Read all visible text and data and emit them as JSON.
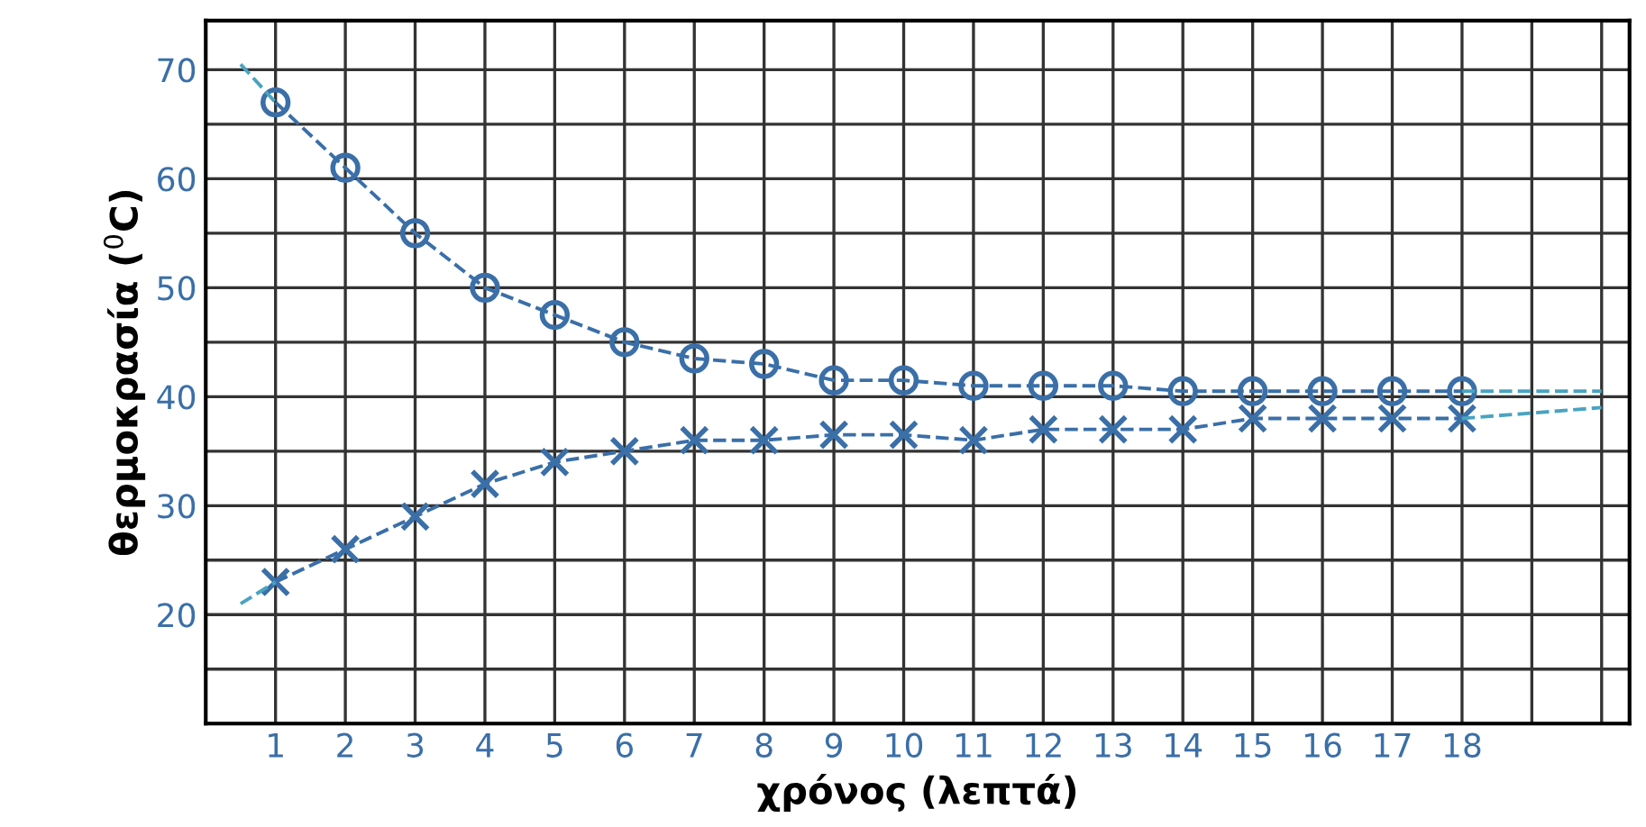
{
  "chart_data": {
    "type": "line",
    "xlabel": "χρόνος (λεπτά)",
    "ylabel": "θερμοκρασία ($^{0}$C)",
    "xlim": [
      0,
      20.4
    ],
    "ylim": [
      10,
      74.5
    ],
    "xticks": [
      {
        "value": 0,
        "label": null
      },
      1,
      2,
      3,
      4,
      5,
      6,
      7,
      8,
      9,
      10,
      11,
      12,
      13,
      14,
      15,
      16,
      17,
      18,
      {
        "value": 19,
        "label": null
      },
      {
        "value": 20,
        "label": null
      }
    ],
    "yticks": [
      {
        "value": 10,
        "label": null
      },
      {
        "value": 15,
        "label": null
      },
      20,
      {
        "value": 25,
        "label": null
      },
      30,
      {
        "value": 35,
        "label": null
      },
      40,
      {
        "value": 45,
        "label": null
      },
      50,
      {
        "value": 55,
        "label": null
      },
      60,
      {
        "value": 65,
        "label": null
      },
      70
    ],
    "grid": true,
    "line_style": "dashed",
    "series": [
      {
        "color": "#3a6fa8",
        "marker": "circle",
        "x": [
          1,
          2,
          3,
          4,
          5,
          6,
          7,
          8,
          9,
          10,
          11,
          12,
          13,
          14,
          15,
          16,
          17,
          18
        ],
        "values": [
          67,
          61,
          55,
          50,
          47.5,
          45,
          43.5,
          43,
          41.5,
          41.5,
          41,
          41,
          41,
          40.5,
          40.5,
          40.5,
          40.5,
          40.5
        ]
      },
      {
        "color": "#3a6fa8",
        "marker": "cross",
        "x": [
          1,
          2,
          3,
          4,
          5,
          6,
          7,
          8,
          9,
          10,
          11,
          12,
          13,
          14,
          15,
          16,
          17,
          18
        ],
        "values": [
          23,
          26,
          29,
          32,
          34,
          35,
          36,
          36,
          36.5,
          36.5,
          36,
          37,
          37,
          37,
          38,
          38,
          38,
          38
        ]
      },
      {
        "color": "#4aa3c0",
        "marker": "none",
        "x": [
          0.5,
          1
        ],
        "values": [
          70.5,
          67
        ]
      },
      {
        "color": "#4aa3c0",
        "marker": "none",
        "x": [
          18,
          20
        ],
        "values": [
          40.5,
          40.5
        ]
      },
      {
        "color": "#4aa3c0",
        "marker": "none",
        "x": [
          0.5,
          1
        ],
        "values": [
          21,
          23
        ]
      },
      {
        "color": "#4aa3c0",
        "marker": "none",
        "x": [
          18,
          20
        ],
        "values": [
          38,
          39
        ]
      }
    ]
  }
}
